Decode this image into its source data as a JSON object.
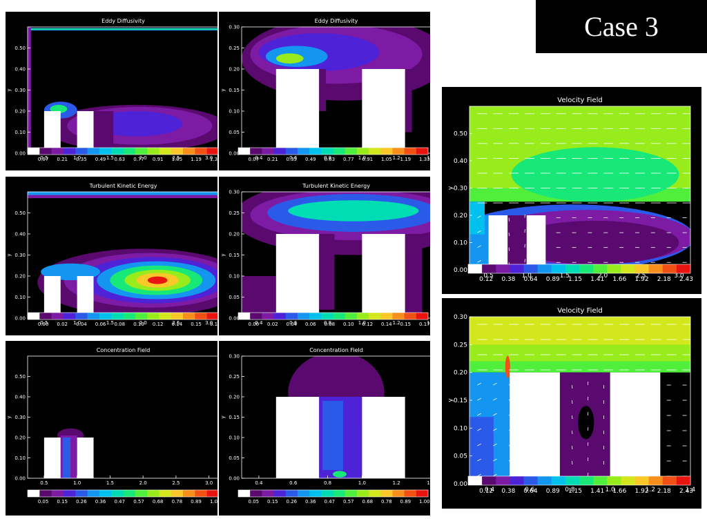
{
  "case_label": "Case 3",
  "colors": {
    "palette": [
      "#ffffff",
      "#5a0a6e",
      "#7d1ba5",
      "#4e22d6",
      "#2c5ae8",
      "#1496f0",
      "#00c0ee",
      "#00dcb4",
      "#18e878",
      "#50ef3c",
      "#98ec1c",
      "#d2e81c",
      "#fac828",
      "#f88e1c",
      "#f25014",
      "#e8140f"
    ],
    "building": "#ffffff",
    "background": "#000000",
    "arrow": "#ffffff"
  },
  "chart_data": [
    {
      "type": "heatmap",
      "title": "Eddy Diffusivity",
      "ylabel": "y",
      "xlabel": "",
      "xlim": [
        0.25,
        3.15
      ],
      "ylim": [
        0,
        0.6
      ],
      "xticks": [
        "0.5",
        "1.0",
        "1.5",
        "2.0",
        "2.5",
        "3.0"
      ],
      "yticks": [
        "0.00",
        "0.10",
        "0.20",
        "0.30",
        "0.40",
        "0.50"
      ],
      "colorbar": [
        "0.07",
        "0.21",
        "0.35",
        "0.49",
        "0.63",
        "0.77",
        "0.91",
        "1.05",
        "1.19",
        "1.33"
      ],
      "buildings": [
        [
          0.5,
          0.75,
          0.2
        ],
        [
          1.0,
          1.25,
          0.2
        ]
      ]
    },
    {
      "type": "heatmap",
      "title": "Eddy Diffusivity",
      "ylabel": "y",
      "xlabel": "",
      "xlim": [
        0.3,
        1.4
      ],
      "ylim": [
        0,
        0.3
      ],
      "xticks": [
        "0.4",
        "0.6",
        "0.8",
        "1.0",
        "1.2",
        "1.4"
      ],
      "yticks": [
        "0.00",
        "0.05",
        "0.10",
        "0.15",
        "0.20",
        "0.25",
        "0.30"
      ],
      "colorbar": [
        "0.07",
        "0.21",
        "0.35",
        "0.49",
        "0.63",
        "0.77",
        "0.91",
        "1.05",
        "1.19",
        "1.33"
      ],
      "buildings": [
        [
          0.5,
          0.75,
          0.2
        ],
        [
          1.0,
          1.25,
          0.2
        ]
      ]
    },
    {
      "type": "heatmap",
      "title": "Turbulent Kinetic Energy",
      "ylabel": "y",
      "xlabel": "",
      "xlim": [
        0.25,
        3.15
      ],
      "ylim": [
        0,
        0.6
      ],
      "xticks": [
        "0.5",
        "1.0",
        "1.5",
        "2.0",
        "2.5",
        "3.0"
      ],
      "yticks": [
        "0.00",
        "0.10",
        "0.20",
        "0.30",
        "0.40",
        "0.50"
      ],
      "colorbar": [
        "0.00",
        "0.02",
        "0.04",
        "0.06",
        "0.08",
        "0.10",
        "0.12",
        "0.14",
        "0.15",
        "0.17"
      ],
      "buildings": [
        [
          0.5,
          0.75,
          0.2
        ],
        [
          1.0,
          1.25,
          0.2
        ]
      ]
    },
    {
      "type": "heatmap",
      "title": "Turbulent Kinetic Energy",
      "ylabel": "y",
      "xlabel": "",
      "xlim": [
        0.3,
        1.4
      ],
      "ylim": [
        0,
        0.3
      ],
      "xticks": [
        "0.4",
        "0.6",
        "0.8",
        "1.0",
        "1.2",
        "1.4"
      ],
      "yticks": [
        "0.00",
        "0.05",
        "0.10",
        "0.15",
        "0.20",
        "0.25",
        "0.30"
      ],
      "colorbar": [
        "0.00",
        "0.02",
        "0.04",
        "0.06",
        "0.08",
        "0.10",
        "0.12",
        "0.14",
        "0.15",
        "0.17"
      ],
      "buildings": [
        [
          0.5,
          0.75,
          0.2
        ],
        [
          1.0,
          1.25,
          0.2
        ]
      ]
    },
    {
      "type": "heatmap",
      "title": "Concentration Field",
      "ylabel": "y",
      "xlabel": "",
      "xlim": [
        0.25,
        3.15
      ],
      "ylim": [
        0,
        0.6
      ],
      "xticks": [
        "0.5",
        "1.0",
        "1.5",
        "2.0",
        "2.5",
        "3.0"
      ],
      "yticks": [
        "0.00",
        "0.10",
        "0.20",
        "0.30",
        "0.40",
        "0.50"
      ],
      "colorbar": [
        "0.05",
        "0.15",
        "0.26",
        "0.36",
        "0.47",
        "0.57",
        "0.68",
        "0.78",
        "0.89",
        "1.00"
      ],
      "buildings": [
        [
          0.5,
          0.75,
          0.2
        ],
        [
          1.0,
          1.25,
          0.2
        ]
      ]
    },
    {
      "type": "heatmap",
      "title": "Concentration Field",
      "ylabel": "y",
      "xlabel": "",
      "xlim": [
        0.3,
        1.4
      ],
      "ylim": [
        0,
        0.3
      ],
      "xticks": [
        "0.4",
        "0.6",
        "0.8",
        "1.0",
        "1.2",
        "1.4"
      ],
      "yticks": [
        "0.00",
        "0.05",
        "0.10",
        "0.15",
        "0.20",
        "0.25",
        "0.30"
      ],
      "colorbar": [
        "0.05",
        "0.15",
        "0.26",
        "0.36",
        "0.47",
        "0.57",
        "0.68",
        "0.78",
        "0.89",
        "1.00"
      ],
      "buildings": [
        [
          0.5,
          0.75,
          0.2
        ],
        [
          1.0,
          1.25,
          0.2
        ]
      ]
    },
    {
      "type": "heatmap",
      "title": "Velocity Field",
      "ylabel": "y",
      "xlabel": "",
      "xlim": [
        0.25,
        3.15
      ],
      "ylim": [
        0,
        0.6
      ],
      "xticks": [
        "0.5",
        "1.0",
        "1.5",
        "2.0",
        "2.5",
        "3.0"
      ],
      "yticks": [
        "0.00",
        "0.10",
        "0.20",
        "0.30",
        "0.40",
        "0.50"
      ],
      "colorbar": [
        "0.12",
        "0.38",
        "0.64",
        "0.89",
        "1.15",
        "1.41",
        "1.66",
        "1.92",
        "2.18",
        "2.43"
      ],
      "buildings": [
        [
          0.5,
          0.75,
          0.2
        ],
        [
          1.0,
          1.25,
          0.2
        ]
      ]
    },
    {
      "type": "heatmap",
      "title": "Velocity Field",
      "ylabel": "y",
      "xlabel": "",
      "xlim": [
        0.3,
        1.4
      ],
      "ylim": [
        0,
        0.3
      ],
      "xticks": [
        "0.4",
        "0.6",
        "0.8",
        "1.0",
        "1.2",
        "1.4"
      ],
      "yticks": [
        "0.00",
        "0.05",
        "0.10",
        "0.15",
        "0.20",
        "0.25",
        "0.30"
      ],
      "colorbar": [
        "0.12",
        "0.38",
        "0.64",
        "0.89",
        "1.15",
        "1.41",
        "1.66",
        "1.92",
        "2.18",
        "2.43"
      ],
      "buildings": [
        [
          0.5,
          0.75,
          0.2
        ],
        [
          1.0,
          1.25,
          0.2
        ]
      ]
    }
  ]
}
